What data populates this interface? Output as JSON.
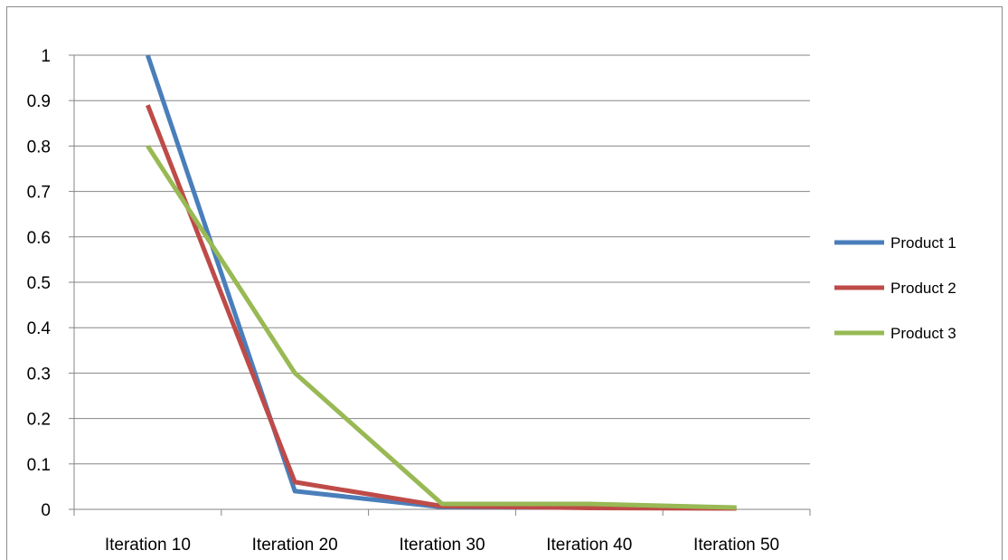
{
  "chart_data": {
    "type": "line",
    "title": "",
    "xlabel": "",
    "ylabel": "",
    "categories": [
      "Iteration 10",
      "Iteration 20",
      "Iteration 30",
      "Iteration 40",
      "Iteration 50"
    ],
    "ylim": [
      0,
      1
    ],
    "yticks": [
      "0",
      "0.1",
      "0.2",
      "0.3",
      "0.4",
      "0.5",
      "0.6",
      "0.7",
      "0.8",
      "0.9",
      "1"
    ],
    "grid": true,
    "legend_position": "right",
    "series": [
      {
        "name": "Product 1",
        "color": "#4a7ebb",
        "values": [
          1.0,
          0.04,
          0.005,
          0.004,
          0.003
        ]
      },
      {
        "name": "Product 2",
        "color": "#be4b48",
        "values": [
          0.89,
          0.06,
          0.007,
          0.003,
          0.002
        ]
      },
      {
        "name": "Product 3",
        "color": "#98b954",
        "values": [
          0.8,
          0.3,
          0.012,
          0.012,
          0.004
        ]
      }
    ]
  }
}
